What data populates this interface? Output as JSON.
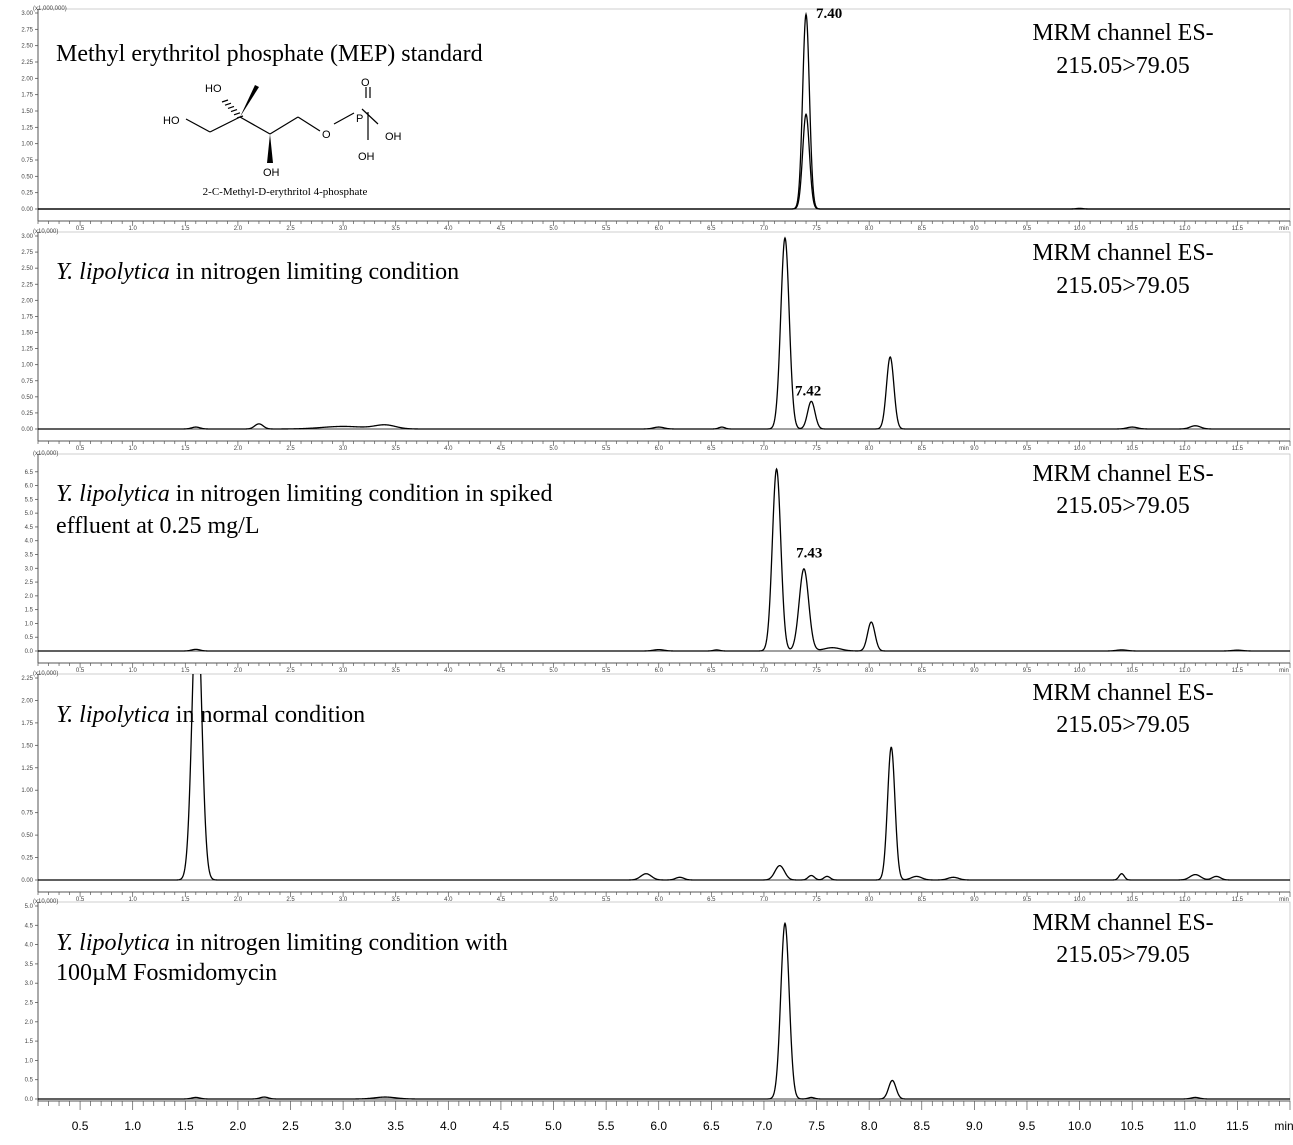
{
  "chart_data": [
    {
      "type": "line",
      "title_plain": "Methyl erythritol phosphate (MEP) standard",
      "channel": [
        "MRM channel ES-",
        "215.05>79.05"
      ],
      "scale_label": "(x1,000,000)",
      "ylim": [
        0,
        3.0
      ],
      "yticks": [
        0.0,
        0.25,
        0.5,
        0.75,
        1.0,
        1.25,
        1.5,
        1.75,
        2.0,
        2.25,
        2.5,
        2.75,
        3.0
      ],
      "ytick_labels": [
        "0.00",
        "0.25",
        "0.50",
        "0.75",
        "1.00",
        "1.25",
        "1.50",
        "1.75",
        "2.00",
        "2.25",
        "2.50",
        "2.75",
        "3.00"
      ],
      "peak_label": {
        "text": "7.40",
        "x": 7.4,
        "y": 2.92
      },
      "structure": {
        "name": "2-C-Methyl-D-erythritol 4-phosphate",
        "atoms": [
          "HO",
          "HO",
          "O",
          "P",
          "O",
          "OH",
          "OH",
          "OH"
        ]
      },
      "series": [
        {
          "peaks": [
            [
              7.4,
              2.98,
              0.032
            ],
            [
              10.0,
              0.01,
              0.03
            ]
          ]
        },
        {
          "peaks": [
            [
              7.4,
              1.45,
              0.032
            ]
          ]
        }
      ]
    },
    {
      "type": "line",
      "title_italic": "Y. lipolytica",
      "title_rest": " in nitrogen limiting condition",
      "channel": [
        "MRM channel ES-",
        "215.05>79.05"
      ],
      "scale_label": "(x10,000)",
      "ylim": [
        0,
        3.0
      ],
      "yticks": [
        0.0,
        0.25,
        0.5,
        0.75,
        1.0,
        1.25,
        1.5,
        1.75,
        2.0,
        2.25,
        2.5,
        2.75,
        3.0
      ],
      "ytick_labels": [
        "0.00",
        "0.25",
        "0.50",
        "0.75",
        "1.00",
        "1.25",
        "1.50",
        "1.75",
        "2.00",
        "2.25",
        "2.50",
        "2.75",
        "3.00"
      ],
      "peak_label": {
        "text": "7.42",
        "x": 7.42,
        "y": 0.52
      },
      "series": [
        {
          "peaks": [
            [
              1.6,
              0.03,
              0.04
            ],
            [
              2.2,
              0.08,
              0.04
            ],
            [
              3.0,
              0.04,
              0.2
            ],
            [
              3.4,
              0.06,
              0.1
            ],
            [
              6.0,
              0.03,
              0.05
            ],
            [
              6.6,
              0.03,
              0.03
            ],
            [
              7.2,
              2.97,
              0.04
            ],
            [
              7.45,
              0.43,
              0.035
            ],
            [
              8.2,
              1.12,
              0.035
            ],
            [
              10.5,
              0.03,
              0.05
            ],
            [
              11.1,
              0.05,
              0.05
            ]
          ]
        }
      ]
    },
    {
      "type": "line",
      "title_italic": "Y. lipolytica",
      "title_rest": " in nitrogen limiting condition in spiked",
      "title_line2": "effluent at 0.25 mg/L",
      "channel": [
        "MRM channel ES-",
        "215.05>79.05"
      ],
      "scale_label": "(x10,000)",
      "ylim": [
        0,
        7.0
      ],
      "yticks": [
        0.0,
        0.5,
        1.0,
        1.5,
        2.0,
        2.5,
        3.0,
        3.5,
        4.0,
        4.5,
        5.0,
        5.5,
        6.0,
        6.5
      ],
      "ytick_labels": [
        "0.0",
        "0.5",
        "1.0",
        "1.5",
        "2.0",
        "2.5",
        "3.0",
        "3.5",
        "4.0",
        "4.5",
        "5.0",
        "5.5",
        "6.0",
        "6.5"
      ],
      "peak_label": {
        "text": "7.43",
        "x": 7.43,
        "y": 3.4
      },
      "series": [
        {
          "peaks": [
            [
              1.6,
              0.06,
              0.04
            ],
            [
              6.0,
              0.05,
              0.05
            ],
            [
              6.55,
              0.04,
              0.03
            ],
            [
              7.12,
              6.6,
              0.04
            ],
            [
              7.38,
              2.98,
              0.045
            ],
            [
              7.65,
              0.12,
              0.08
            ],
            [
              8.02,
              1.05,
              0.035
            ],
            [
              10.4,
              0.04,
              0.05
            ],
            [
              11.5,
              0.03,
              0.05
            ]
          ]
        }
      ]
    },
    {
      "type": "line",
      "title_italic": "Y. lipolytica",
      "title_rest": " in normal condition",
      "channel": [
        "MRM channel ES-",
        "215.05>79.05"
      ],
      "scale_label": "(x10,000)",
      "ylim": [
        0,
        2.25
      ],
      "yticks": [
        0.0,
        0.25,
        0.5,
        0.75,
        1.0,
        1.25,
        1.5,
        1.75,
        2.0,
        2.25
      ],
      "ytick_labels": [
        "0.00",
        "0.25",
        "0.50",
        "0.75",
        "1.00",
        "1.25",
        "1.50",
        "1.75",
        "2.00",
        "2.25"
      ],
      "series": [
        {
          "peaks": [
            [
              1.61,
              3.2,
              0.045
            ],
            [
              5.88,
              0.07,
              0.05
            ],
            [
              6.2,
              0.03,
              0.04
            ],
            [
              7.15,
              0.16,
              0.045
            ],
            [
              7.45,
              0.05,
              0.03
            ],
            [
              7.6,
              0.04,
              0.03
            ],
            [
              8.21,
              1.48,
              0.035
            ],
            [
              8.45,
              0.04,
              0.05
            ],
            [
              8.8,
              0.03,
              0.05
            ],
            [
              10.4,
              0.07,
              0.025
            ],
            [
              11.1,
              0.06,
              0.05
            ],
            [
              11.3,
              0.04,
              0.04
            ]
          ]
        }
      ]
    },
    {
      "type": "line",
      "title_italic": "Y. lipolytica",
      "title_rest": " in nitrogen limiting condition with",
      "title_line2": "100µM Fosmidomycin",
      "channel": [
        "MRM channel ES-",
        "215.05>79.05"
      ],
      "scale_label": "(x10,000)",
      "ylim": [
        0,
        5.0
      ],
      "yticks": [
        0.0,
        0.5,
        1.0,
        1.5,
        2.0,
        2.5,
        3.0,
        3.5,
        4.0,
        4.5,
        5.0
      ],
      "ytick_labels": [
        "0.0",
        "0.5",
        "1.0",
        "1.5",
        "2.0",
        "2.5",
        "3.0",
        "3.5",
        "4.0",
        "4.5",
        "5.0"
      ],
      "series": [
        {
          "peaks": [
            [
              1.6,
              0.04,
              0.04
            ],
            [
              2.25,
              0.05,
              0.04
            ],
            [
              3.4,
              0.05,
              0.1
            ],
            [
              7.2,
              4.55,
              0.04
            ],
            [
              7.45,
              0.04,
              0.03
            ],
            [
              8.22,
              0.48,
              0.035
            ],
            [
              11.1,
              0.04,
              0.04
            ]
          ]
        }
      ]
    }
  ],
  "x_axis": {
    "xlim": [
      0.1,
      12.0
    ],
    "ticks": [
      0.5,
      1.0,
      1.5,
      2.0,
      2.5,
      3.0,
      3.5,
      4.0,
      4.5,
      5.0,
      5.5,
      6.0,
      6.5,
      7.0,
      7.5,
      8.0,
      8.5,
      9.0,
      9.5,
      10.0,
      10.5,
      11.0,
      11.5
    ],
    "tick_labels": [
      "0.5",
      "1.0",
      "1.5",
      "2.0",
      "2.5",
      "3.0",
      "3.5",
      "4.0",
      "4.5",
      "5.0",
      "5.5",
      "6.0",
      "6.5",
      "7.0",
      "7.5",
      "8.0",
      "8.5",
      "9.0",
      "9.5",
      "10.0",
      "10.5",
      "11.0",
      "11.5"
    ],
    "unit": "min"
  },
  "colors": {
    "line": "#000000",
    "axis": "#555555",
    "background": "#ffffff"
  }
}
